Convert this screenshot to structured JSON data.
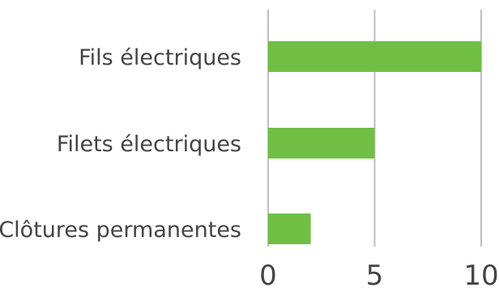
{
  "chart_data": {
    "type": "bar",
    "orientation": "horizontal",
    "categories": [
      "Fils électriques",
      "Filets électriques",
      "Clôtures permanentes"
    ],
    "values": [
      10,
      5,
      2
    ],
    "xlim": [
      0,
      10
    ],
    "xticks": [
      0,
      5,
      10
    ],
    "title": "",
    "xlabel": "",
    "ylabel": "",
    "grid": "vertical",
    "legend": "none",
    "bar_color": "#70bf44"
  }
}
